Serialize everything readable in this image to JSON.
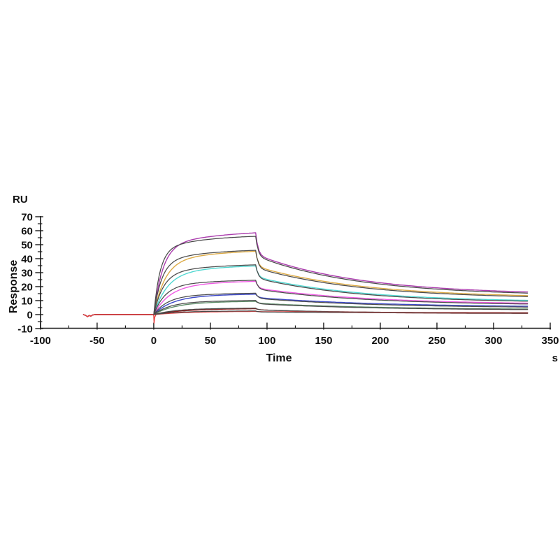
{
  "chart_data": {
    "type": "line",
    "title": "",
    "ylabel": "Response",
    "y_unit": "RU",
    "xlabel": "Time",
    "x_unit": "s",
    "xlim": [
      -100,
      350
    ],
    "ylim": [
      -10,
      70
    ],
    "x_ticks": [
      -100,
      -50,
      0,
      50,
      100,
      150,
      200,
      250,
      300,
      350
    ],
    "x_minor_ticks": [
      -75,
      -25,
      25,
      75,
      125,
      175,
      225,
      275,
      325
    ],
    "y_ticks": [
      70,
      60,
      50,
      40,
      30,
      20,
      10,
      0,
      -10
    ],
    "y_minor_ticks": [
      65,
      55,
      45,
      35,
      25,
      15,
      5,
      -5
    ],
    "grid": false,
    "legend": "none",
    "axis_color": "#1a1a1a",
    "fit_color": "#4a4a4a",
    "phases": {
      "baseline_start": -62,
      "association_start": 0,
      "dissociation_start": 90,
      "run_end": 330
    },
    "baseline_blip": [
      [
        -62,
        0
      ],
      [
        -60,
        -0.6
      ],
      [
        -58.5,
        -1.5
      ],
      [
        -57,
        -0.6
      ],
      [
        -55.5,
        -1.1
      ],
      [
        -54,
        -0.3
      ],
      [
        -52,
        0
      ]
    ],
    "injection_spike": [
      [
        0,
        -0.5
      ],
      [
        0.3,
        -6.0
      ],
      [
        0.8,
        -2.0
      ]
    ],
    "series": [
      {
        "name": "sensorgram-conc-1",
        "color": "#AB3DAE",
        "peak": 58.5,
        "shoulder": 43.0,
        "end": 16.2,
        "tau_fast": 8,
        "tau_slow": 60,
        "fit": {
          "peak": 56.0,
          "shoulder": 42.0,
          "end": 15.4,
          "tau_fast": 5.5,
          "tau_slow": 40
        }
      },
      {
        "name": "sensorgram-conc-2",
        "color": "#DDAB46",
        "peak": 45.3,
        "shoulder": 34.5,
        "end": 13.6,
        "tau_fast": 10,
        "tau_slow": 65,
        "fit": {
          "peak": 46.0,
          "shoulder": 33.5,
          "end": 12.9,
          "tau_fast": 7,
          "tau_slow": 45
        }
      },
      {
        "name": "sensorgram-conc-3",
        "color": "#52D8D2",
        "peak": 34.8,
        "shoulder": 27.0,
        "end": 10.2,
        "tau_fast": 12,
        "tau_slow": 70,
        "fit": {
          "peak": 35.6,
          "shoulder": 26.2,
          "end": 9.6,
          "tau_fast": 8.5,
          "tau_slow": 50
        }
      },
      {
        "name": "sensorgram-conc-4",
        "color": "#EF5BE4",
        "peak": 23.8,
        "shoulder": 19.0,
        "end": 8.2,
        "tau_fast": 14,
        "tau_slow": 80,
        "fit": {
          "peak": 24.6,
          "shoulder": 18.3,
          "end": 7.6,
          "tau_fast": 10,
          "tau_slow": 55
        }
      },
      {
        "name": "sensorgram-conc-5",
        "color": "#3D49C9",
        "peak": 14.6,
        "shoulder": 12.2,
        "end": 6.0,
        "tau_fast": 16,
        "tau_slow": 90,
        "fit": {
          "peak": 15.3,
          "shoulder": 11.7,
          "end": 5.4,
          "tau_fast": 12,
          "tau_slow": 60
        }
      },
      {
        "name": "sensorgram-conc-6",
        "color": "#5F8D69",
        "peak": 9.5,
        "shoulder": 8.2,
        "end": 4.0,
        "tau_fast": 18,
        "tau_slow": 100,
        "fit": {
          "peak": 10.1,
          "shoulder": 7.8,
          "end": 3.6,
          "tau_fast": 14,
          "tau_slow": 70
        }
      },
      {
        "name": "sensorgram-conc-7",
        "color": "#8B1E1E",
        "peak": 4.2,
        "shoulder": 3.6,
        "end": 0.9,
        "tau_fast": 24,
        "tau_slow": 130,
        "fit": {
          "peak": 4.6,
          "shoulder": 3.4,
          "end": 1.2,
          "tau_fast": 18,
          "tau_slow": 85
        }
      },
      {
        "name": "sensorgram-conc-8",
        "color": "#E84040",
        "peak": 2.3,
        "shoulder": 2.1,
        "end": 1.4,
        "tau_fast": 28,
        "tau_slow": 150,
        "spike": true,
        "fit": {
          "peak": 2.6,
          "shoulder": 1.9,
          "end": 1.1,
          "tau_fast": 20,
          "tau_slow": 95
        }
      }
    ]
  },
  "labels": {
    "y_unit": "RU",
    "y_axis_title": "Response",
    "x_axis_title": "Time",
    "x_unit": "s"
  }
}
